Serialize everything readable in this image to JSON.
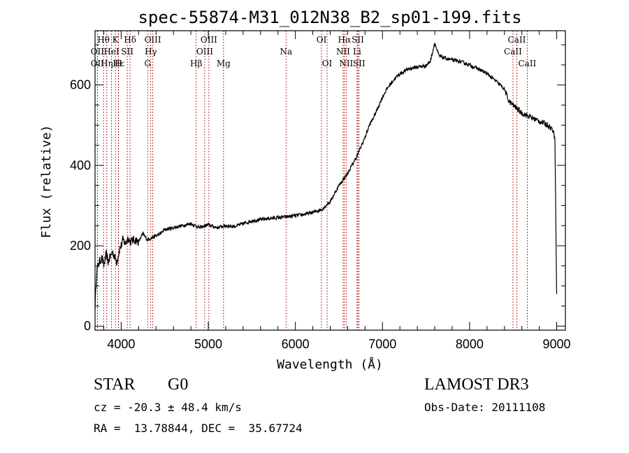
{
  "chart_data": {
    "type": "line",
    "title": "spec-55874-M31_012N38_B2_sp01-199.fits",
    "xlabel": "Wavelength (Å)",
    "ylabel": "Flux (relative)",
    "xlim": [
      3700,
      9100
    ],
    "ylim": [
      -10,
      735
    ],
    "x_ticks": [
      4000,
      5000,
      6000,
      7000,
      8000,
      9000
    ],
    "y_ticks": [
      0,
      200,
      400,
      600
    ],
    "series": [
      {
        "name": "spectrum",
        "x": [
          3700,
          3720,
          3750,
          3780,
          3800,
          3830,
          3850,
          3880,
          3900,
          3930,
          3950,
          3980,
          4000,
          4020,
          4050,
          4080,
          4100,
          4150,
          4200,
          4250,
          4300,
          4350,
          4400,
          4450,
          4500,
          4600,
          4700,
          4800,
          4900,
          5000,
          5100,
          5200,
          5300,
          5400,
          5500,
          5600,
          5700,
          5800,
          5900,
          6000,
          6100,
          6200,
          6300,
          6400,
          6450,
          6500,
          6550,
          6600,
          6650,
          6700,
          6750,
          6800,
          6850,
          6900,
          6950,
          7000,
          7050,
          7100,
          7150,
          7200,
          7300,
          7400,
          7500,
          7550,
          7600,
          7620,
          7650,
          7700,
          7800,
          7900,
          8000,
          8100,
          8200,
          8300,
          8400,
          8450,
          8500,
          8550,
          8600,
          8650,
          8700,
          8800,
          8900,
          8950,
          8980,
          9000
        ],
        "y": [
          50,
          140,
          160,
          170,
          150,
          180,
          160,
          175,
          185,
          170,
          160,
          190,
          200,
          215,
          205,
          220,
          210,
          215,
          210,
          230,
          215,
          220,
          225,
          230,
          240,
          245,
          250,
          255,
          245,
          252,
          245,
          250,
          248,
          255,
          262,
          265,
          268,
          270,
          272,
          275,
          278,
          283,
          290,
          310,
          330,
          350,
          365,
          380,
          400,
          420,
          445,
          470,
          500,
          520,
          545,
          570,
          590,
          605,
          618,
          628,
          640,
          645,
          648,
          660,
          705,
          690,
          672,
          668,
          662,
          658,
          650,
          640,
          628,
          610,
          590,
          560,
          550,
          540,
          530,
          525,
          520,
          510,
          500,
          490,
          470,
          80
        ]
      }
    ],
    "emission_lines": [
      {
        "label": "Hθ",
        "wavelength": 3797,
        "row": 1
      },
      {
        "label": "OII",
        "wavelength": 3727,
        "row": 2
      },
      {
        "label": "OII",
        "wavelength": 3727,
        "row": 3
      },
      {
        "label": "K",
        "wavelength": 3934,
        "row": 1
      },
      {
        "label": "HeI",
        "wavelength": 3889,
        "row": 2
      },
      {
        "label": "Hε",
        "wavelength": 3970,
        "row": 3
      },
      {
        "label": "Hη",
        "wavelength": 3835,
        "row": 3
      },
      {
        "label": "H",
        "wavelength": 3969,
        "row": 3
      },
      {
        "label": "Hδ",
        "wavelength": 4102,
        "row": 1
      },
      {
        "label": "SII",
        "wavelength": 4070,
        "row": 2
      },
      {
        "label": "OIII",
        "wavelength": 4363,
        "row": 1
      },
      {
        "label": "Hγ",
        "wavelength": 4340,
        "row": 2
      },
      {
        "label": "G",
        "wavelength": 4304,
        "row": 3
      },
      {
        "label": "OIII",
        "wavelength": 5007,
        "row": 1
      },
      {
        "label": "OIII",
        "wavelength": 4959,
        "row": 2
      },
      {
        "label": "Hβ",
        "wavelength": 4861,
        "row": 3
      },
      {
        "label": "Mg",
        "wavelength": 5175,
        "row": 3
      },
      {
        "label": "Na",
        "wavelength": 5893,
        "row": 2
      },
      {
        "label": "OI",
        "wavelength": 6300,
        "row": 1
      },
      {
        "label": "OI",
        "wavelength": 6364,
        "row": 3
      },
      {
        "label": "Hα",
        "wavelength": 6563,
        "row": 1
      },
      {
        "label": "NII",
        "wavelength": 6548,
        "row": 2
      },
      {
        "label": "NII",
        "wavelength": 6583,
        "row": 3
      },
      {
        "label": "SII",
        "wavelength": 6717,
        "row": 1
      },
      {
        "label": "Li",
        "wavelength": 6708,
        "row": 2
      },
      {
        "label": "SII",
        "wavelength": 6731,
        "row": 3
      },
      {
        "label": "CaII",
        "wavelength": 8542,
        "row": 1
      },
      {
        "label": "CaII",
        "wavelength": 8498,
        "row": 2
      },
      {
        "label": "CaII",
        "wavelength": 8662,
        "row": 3
      }
    ]
  },
  "info": {
    "class": "STAR",
    "subclass": "G0",
    "survey": "LAMOST DR3",
    "cz": "cz = -20.3 ± 48.4 km/s",
    "obs_date": "Obs-Date: 20111108",
    "coords": "RA =  13.78844, DEC =  35.67724"
  },
  "colors": {
    "line_marker": "#aa0000",
    "spectrum": "#000000"
  }
}
